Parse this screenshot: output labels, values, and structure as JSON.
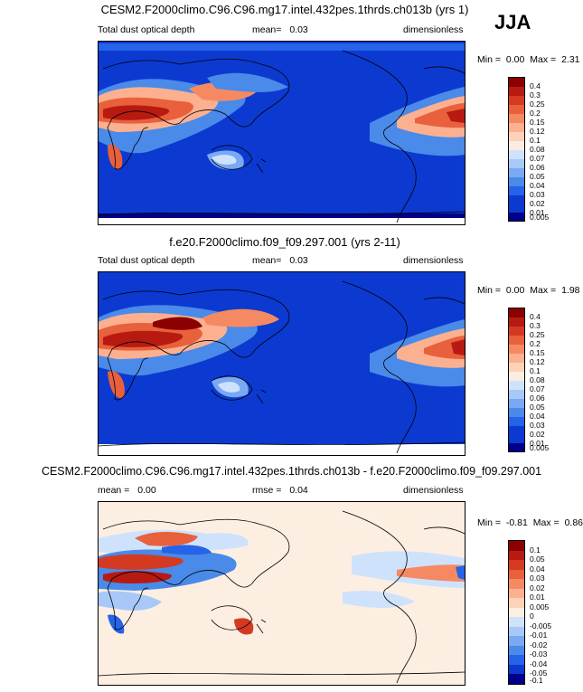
{
  "season": "JJA",
  "colors": {
    "abs": [
      "#00008b",
      "#0c3ad0",
      "#2563e8",
      "#4a8ae8",
      "#7aa8f2",
      "#a8c8f8",
      "#cfe2fc",
      "#fbebe0",
      "#fdd2b6",
      "#fcb090",
      "#f58a62",
      "#e8603c",
      "#d43a22",
      "#b81a12",
      "#8b0000"
    ],
    "diff": [
      "#00008b",
      "#0c3ad0",
      "#2563e8",
      "#4a8ae8",
      "#7aa8f2",
      "#a8c8f8",
      "#cfe2fc",
      "#fdeee2",
      "#fdd2b6",
      "#fcb090",
      "#f58a62",
      "#e8603c",
      "#d43a22",
      "#b81a12",
      "#8b0000"
    ]
  },
  "chart_data": [
    {
      "type": "heatmap",
      "title": "CESM2.F2000climo.C96.C96.mg17.intel.432pes.1thrds.ch013b (yrs 1)",
      "field": "Total dust optical depth",
      "mean_label": "mean=",
      "mean": "0.03",
      "units": "dimensionless",
      "min_label": "Min =",
      "min": "0.00",
      "max_label": "Max =",
      "max": "2.31",
      "colorbar_levels": [
        "0.4",
        "0.3",
        "0.25",
        "0.2",
        "0.15",
        "0.12",
        "0.1",
        "0.08",
        "0.07",
        "0.06",
        "0.05",
        "0.04",
        "0.03",
        "0.02",
        "0.01",
        "0.005"
      ]
    },
    {
      "type": "heatmap",
      "title": "f.e20.F2000climo.f09_f09.297.001 (yrs 2-11)",
      "field": "Total dust optical depth",
      "mean_label": "mean=",
      "mean": "0.03",
      "units": "dimensionless",
      "min_label": "Min =",
      "min": "0.00",
      "max_label": "Max =",
      "max": "1.98",
      "colorbar_levels": [
        "0.4",
        "0.3",
        "0.25",
        "0.2",
        "0.15",
        "0.12",
        "0.1",
        "0.08",
        "0.07",
        "0.06",
        "0.05",
        "0.04",
        "0.03",
        "0.02",
        "0.01",
        "0.005"
      ]
    },
    {
      "type": "heatmap",
      "title": "CESM2.F2000climo.C96.C96.mg17.intel.432pes.1thrds.ch013b - f.e20.F2000climo.f09_f09.297.001",
      "mean_label": "mean =",
      "mean": "0.00",
      "rmse_label": "rmse =",
      "rmse": "0.04",
      "units": "dimensionless",
      "min_label": "Min =",
      "min": "-0.81",
      "max_label": "Max =",
      "max": "0.86",
      "colorbar_levels": [
        "0.1",
        "0.05",
        "0.04",
        "0.03",
        "0.02",
        "0.01",
        "0.005",
        "0",
        "-0.005",
        "-0.01",
        "-0.02",
        "-0.03",
        "-0.04",
        "-0.05",
        "-0.1"
      ]
    }
  ]
}
